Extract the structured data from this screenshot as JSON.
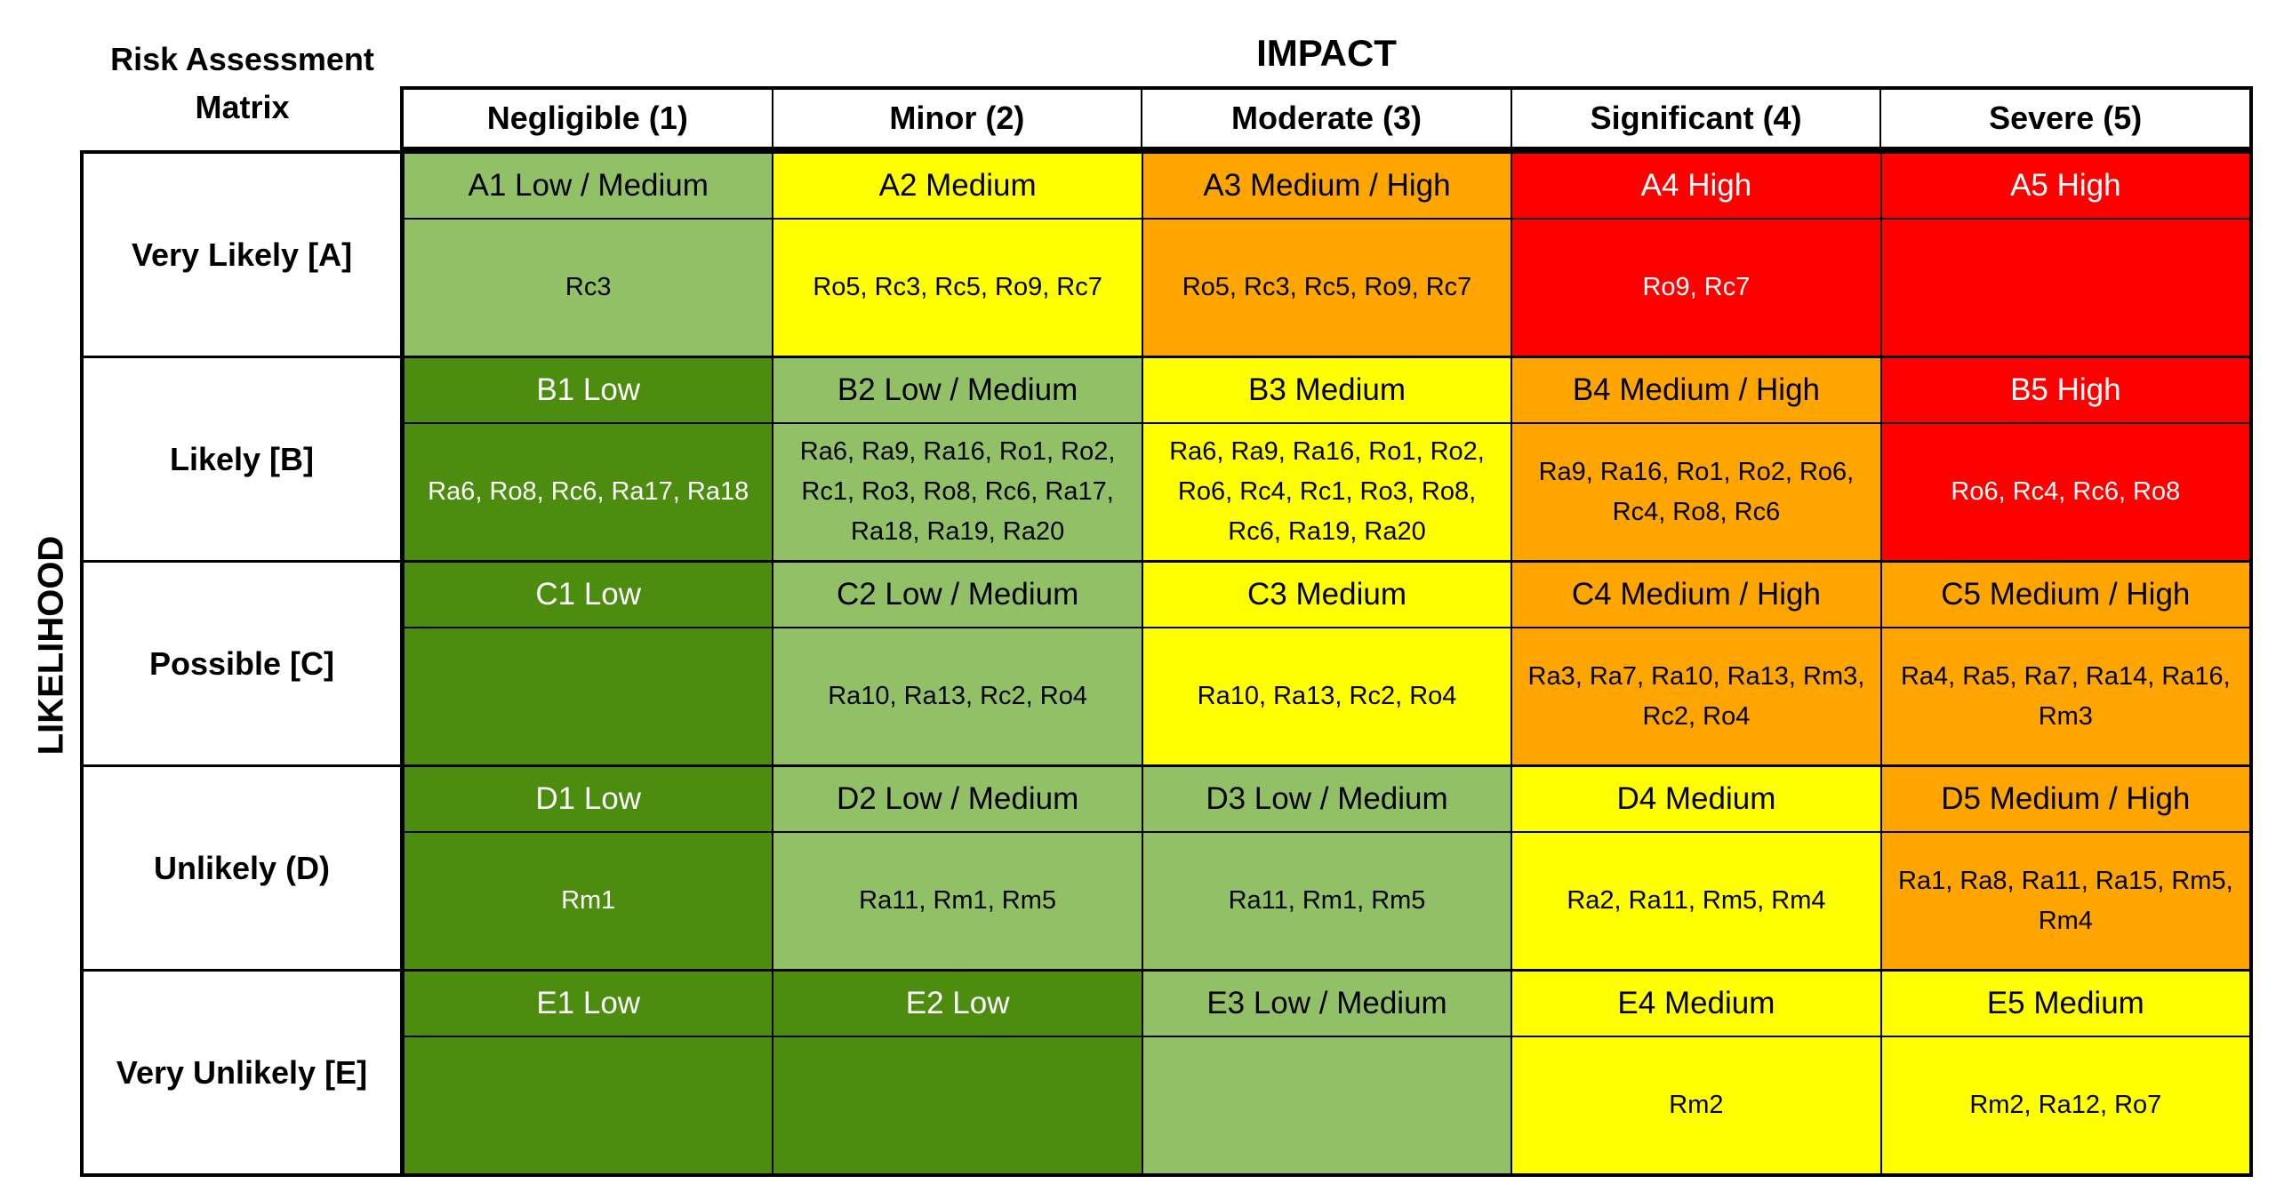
{
  "corner_title": "Risk Assessment Matrix",
  "impact_title": "IMPACT",
  "likelihood_title": "LIKELIHOOD",
  "impact_levels": [
    "Negligible (1)",
    "Minor (2)",
    "Moderate (3)",
    "Significant (4)",
    "Severe (5)"
  ],
  "colors": {
    "dark-green": "#4c8c0f",
    "light-green": "#92c067",
    "yellow": "#ffff00",
    "orange": "#ffa500",
    "red": "#ff0000"
  },
  "rows": [
    {
      "label": "Very Likely [A]",
      "cells": [
        {
          "code": "A1 Low / Medium",
          "risks": "Rc3",
          "color": "light-green"
        },
        {
          "code": "A2 Medium",
          "risks": "Ro5, Rc3, Rc5, Ro9, Rc7",
          "color": "yellow"
        },
        {
          "code": "A3 Medium / High",
          "risks": "Ro5, Rc3, Rc5, Ro9, Rc7",
          "color": "orange"
        },
        {
          "code": "A4 High",
          "risks": "Ro9, Rc7",
          "color": "red"
        },
        {
          "code": "A5 High",
          "risks": "",
          "color": "red"
        }
      ]
    },
    {
      "label": "Likely [B]",
      "cells": [
        {
          "code": "B1 Low",
          "risks": "Ra6, Ro8, Rc6, Ra17, Ra18",
          "color": "dark-green"
        },
        {
          "code": "B2 Low / Medium",
          "risks": "Ra6, Ra9, Ra16, Ro1, Ro2, Rc1, Ro3, Ro8, Rc6, Ra17, Ra18, Ra19, Ra20",
          "color": "light-green"
        },
        {
          "code": "B3 Medium",
          "risks": "Ra6, Ra9, Ra16, Ro1, Ro2, Ro6, Rc4, Rc1, Ro3, Ro8, Rc6, Ra19, Ra20",
          "color": "yellow"
        },
        {
          "code": "B4 Medium / High",
          "risks": "Ra9, Ra16, Ro1, Ro2, Ro6, Rc4, Ro8, Rc6",
          "color": "orange"
        },
        {
          "code": "B5 High",
          "risks": "Ro6, Rc4, Rc6, Ro8",
          "color": "red"
        }
      ]
    },
    {
      "label": "Possible [C]",
      "cells": [
        {
          "code": "C1 Low",
          "risks": "",
          "color": "dark-green"
        },
        {
          "code": "C2 Low / Medium",
          "risks": "Ra10, Ra13, Rc2, Ro4",
          "color": "light-green"
        },
        {
          "code": "C3 Medium",
          "risks": "Ra10, Ra13, Rc2, Ro4",
          "color": "yellow"
        },
        {
          "code": "C4 Medium / High",
          "risks": "Ra3, Ra7, Ra10, Ra13, Rm3, Rc2, Ro4",
          "color": "orange"
        },
        {
          "code": "C5 Medium / High",
          "risks": "Ra4, Ra5, Ra7, Ra14, Ra16, Rm3",
          "color": "orange"
        }
      ]
    },
    {
      "label": "Unlikely (D)",
      "cells": [
        {
          "code": "D1 Low",
          "risks": "Rm1",
          "color": "dark-green"
        },
        {
          "code": "D2 Low / Medium",
          "risks": "Ra11, Rm1, Rm5",
          "color": "light-green"
        },
        {
          "code": "D3 Low / Medium",
          "risks": "Ra11, Rm1, Rm5",
          "color": "light-green"
        },
        {
          "code": "D4 Medium",
          "risks": "Ra2, Ra11, Rm5, Rm4",
          "color": "yellow"
        },
        {
          "code": "D5 Medium / High",
          "risks": "Ra1, Ra8, Ra11, Ra15, Rm5, Rm4",
          "color": "orange"
        }
      ]
    },
    {
      "label": "Very Unlikely [E]",
      "cells": [
        {
          "code": "E1 Low",
          "risks": "",
          "color": "dark-green"
        },
        {
          "code": "E2 Low",
          "risks": "",
          "color": "dark-green"
        },
        {
          "code": "E3 Low / Medium",
          "risks": "",
          "color": "light-green"
        },
        {
          "code": "E4 Medium",
          "risks": "Rm2",
          "color": "yellow"
        },
        {
          "code": "E5 Medium",
          "risks": "Rm2, Ra12, Ro7",
          "color": "yellow"
        }
      ]
    }
  ]
}
